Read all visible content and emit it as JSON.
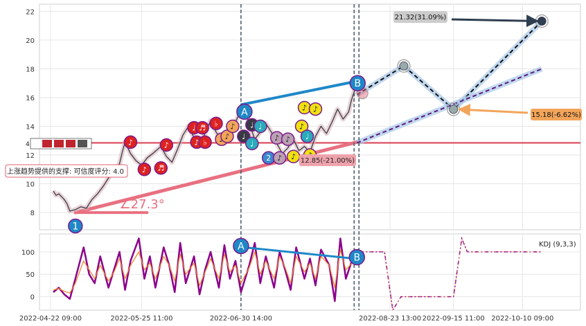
{
  "chart_data": [
    {
      "type": "line",
      "panel": "price",
      "ylim": [
        6.8,
        22.5
      ],
      "yticks": [
        "8",
        "10",
        "12",
        "14",
        "16",
        "18",
        "20",
        "22"
      ],
      "grid": true,
      "price_series": [
        [
          "2022-04-23",
          9.5
        ],
        [
          "2022-04-24",
          9.2
        ],
        [
          "2022-04-25",
          9.3
        ],
        [
          "2022-04-27",
          8.9
        ],
        [
          "2022-04-28",
          8.6
        ],
        [
          "2022-04-29",
          8.1
        ],
        [
          "2022-05-01",
          8.2
        ],
        [
          "2022-05-03",
          8.4
        ],
        [
          "2022-05-05",
          8.3
        ],
        [
          "2022-05-07",
          8.9
        ],
        [
          "2022-05-09",
          9.3
        ],
        [
          "2022-05-11",
          9.8
        ],
        [
          "2022-05-13",
          10.4
        ],
        [
          "2022-05-15",
          10.9
        ],
        [
          "2022-05-17",
          11.4
        ],
        [
          "2022-05-18",
          12.2
        ],
        [
          "2022-05-19",
          12.9
        ],
        [
          "2022-05-21",
          12.1
        ],
        [
          "2022-05-23",
          11.6
        ],
        [
          "2022-05-25",
          11.3
        ],
        [
          "2022-05-27",
          11.8
        ],
        [
          "2022-05-29",
          12.1
        ],
        [
          "2022-06-01",
          12.6
        ],
        [
          "2022-06-03",
          11.9
        ],
        [
          "2022-06-05",
          11.5
        ],
        [
          "2022-06-07",
          12.4
        ],
        [
          "2022-06-09",
          13.4
        ],
        [
          "2022-06-11",
          14.0
        ],
        [
          "2022-06-13",
          13.2
        ],
        [
          "2022-06-15",
          12.8
        ],
        [
          "2022-06-17",
          13.5
        ],
        [
          "2022-06-19",
          14.4
        ],
        [
          "2022-06-21",
          13.6
        ],
        [
          "2022-06-23",
          13.0
        ],
        [
          "2022-06-25",
          13.4
        ],
        [
          "2022-06-27",
          13.9
        ],
        [
          "2022-06-29",
          14.7
        ],
        [
          "2022-07-01",
          15.3
        ],
        [
          "2022-07-03",
          14.2
        ],
        [
          "2022-07-05",
          13.1
        ],
        [
          "2022-07-07",
          13.6
        ],
        [
          "2022-07-09",
          14.2
        ],
        [
          "2022-07-11",
          13.6
        ],
        [
          "2022-07-13",
          12.8
        ],
        [
          "2022-07-15",
          12.1
        ],
        [
          "2022-07-17",
          12.5
        ],
        [
          "2022-07-19",
          13.1
        ],
        [
          "2022-07-21",
          12.3
        ],
        [
          "2022-07-23",
          12.6
        ],
        [
          "2022-07-25",
          12.2
        ],
        [
          "2022-07-27",
          13.3
        ],
        [
          "2022-07-29",
          14.0
        ],
        [
          "2022-07-31",
          13.5
        ],
        [
          "2022-08-02",
          14.3
        ],
        [
          "2022-08-04",
          15.2
        ],
        [
          "2022-08-06",
          14.5
        ],
        [
          "2022-08-08",
          15.0
        ],
        [
          "2022-08-09",
          15.8
        ],
        [
          "2022-08-10",
          16.4
        ],
        [
          "2022-08-11",
          17.1
        ]
      ],
      "support_line": {
        "label": "上涨趋势提供的支撑: 可信度评分: 4.0",
        "value": 12.85,
        "color": "#e06070"
      },
      "trend_line": {
        "from": [
          "2022-05-01",
          8.0
        ],
        "to": [
          "2022-08-11",
          12.9
        ],
        "angle_label": "∠27.3°",
        "color": "#e87080"
      },
      "ab_line": {
        "a": [
          "2022-06-30",
          15.5
        ],
        "b": [
          "2022-08-10",
          17.1
        ],
        "a_label": "A",
        "b_label": "B"
      },
      "vlines": [
        "2022-06-30",
        "2022-08-10",
        "2022-08-11"
      ],
      "forecast_paths": [
        {
          "style": "black-dashed",
          "points": [
            [
              "2022-08-11",
              16.2
            ],
            [
              "2022-08-28",
              18.2
            ],
            [
              "2022-09-15",
              15.18
            ],
            [
              "2022-10-17",
              21.32
            ]
          ]
        },
        {
          "style": "purple-dashed",
          "points": [
            [
              "2022-08-11",
              12.85
            ],
            [
              "2022-10-17",
              18.0
            ]
          ]
        }
      ],
      "callouts": [
        {
          "text": "21.32(31.09%)",
          "point": [
            "2022-10-17",
            21.32
          ],
          "bg": "#cccccc",
          "arrow": "#2f3e50"
        },
        {
          "text": "15.18(-6.62%)",
          "point": [
            "2022-09-15",
            15.18
          ],
          "bg": "#f2a55a",
          "arrow": "#f2a55a"
        },
        {
          "text": "12.85(-21.00%)",
          "point": [
            "2022-08-11",
            12.85
          ],
          "bg": "#eea3ac",
          "arrow": "none"
        }
      ],
      "start_marker": {
        "label": "1",
        "point": [
          "2022-05-01",
          7.5
        ]
      },
      "signal_markers": [
        {
          "x": "2022-05-21",
          "y": 12.9,
          "fill": "#dd2222",
          "glyph": "♪"
        },
        {
          "x": "2022-05-26",
          "y": 11.0,
          "fill": "#dd2222",
          "glyph": "♪"
        },
        {
          "x": "2022-06-01",
          "y": 11.1,
          "fill": "#dd2222",
          "glyph": "♬"
        },
        {
          "x": "2022-06-03",
          "y": 12.7,
          "fill": "#dd2222",
          "glyph": "♪"
        },
        {
          "x": "2022-06-13",
          "y": 13.9,
          "fill": "#dd2222",
          "glyph": "♩"
        },
        {
          "x": "2022-06-14",
          "y": 12.9,
          "fill": "#dd2222",
          "glyph": "♪"
        },
        {
          "x": "2022-06-16",
          "y": 13.9,
          "fill": "#dd2222",
          "glyph": "♬"
        },
        {
          "x": "2022-06-17",
          "y": 12.9,
          "fill": "#dd2222",
          "glyph": "♭"
        },
        {
          "x": "2022-06-21",
          "y": 14.2,
          "fill": "#dd2222",
          "glyph": "♭"
        },
        {
          "x": "2022-06-23",
          "y": 13.1,
          "fill": "#f2a55a",
          "glyph": "♪"
        },
        {
          "x": "2022-06-25",
          "y": 13.3,
          "fill": "#f2a55a",
          "glyph": "♪"
        },
        {
          "x": "2022-06-27",
          "y": 14.0,
          "fill": "#f2a55a",
          "glyph": "♪"
        },
        {
          "x": "2022-07-01",
          "y": 13.3,
          "fill": "#3a3a46",
          "glyph": "♩"
        },
        {
          "x": "2022-07-04",
          "y": 14.1,
          "fill": "#3a3a46",
          "glyph": "♩"
        },
        {
          "x": "2022-07-04",
          "y": 12.8,
          "fill": "#2aaabb",
          "glyph": "♩"
        },
        {
          "x": "2022-07-07",
          "y": 14.0,
          "fill": "#2aaabb",
          "glyph": "♩"
        },
        {
          "x": "2022-07-10",
          "y": 11.8,
          "fill": "#3a8ad0",
          "glyph": "2"
        },
        {
          "x": "2022-07-13",
          "y": 13.2,
          "fill": "#bba0b4",
          "glyph": "♪"
        },
        {
          "x": "2022-07-14",
          "y": 11.8,
          "fill": "#bba0b4",
          "glyph": "♪"
        },
        {
          "x": "2022-07-17",
          "y": 13.1,
          "fill": "#bba0b4",
          "glyph": "♪"
        },
        {
          "x": "2022-07-19",
          "y": 11.9,
          "fill": "#f0e010",
          "glyph": "♪"
        },
        {
          "x": "2022-07-22",
          "y": 14.0,
          "fill": "#f0e010",
          "glyph": "♪"
        },
        {
          "x": "2022-07-24",
          "y": 13.3,
          "fill": "#2aaabb",
          "glyph": "♩"
        },
        {
          "x": "2022-07-23",
          "y": 15.3,
          "fill": "#f0e010",
          "glyph": "♪"
        },
        {
          "x": "2022-07-27",
          "y": 15.2,
          "fill": "#f0e010",
          "glyph": "♪"
        },
        {
          "x": "2022-07-25",
          "y": 12.0,
          "fill": "#f0e010",
          "glyph": "♪"
        }
      ],
      "faded_marker": {
        "x": "2022-08-13",
        "y": 16.3
      },
      "ring_points": [
        [
          "2022-08-28",
          18.2
        ],
        [
          "2022-09-15",
          15.18
        ],
        [
          "2022-10-17",
          21.32
        ]
      ],
      "legend_widget": {
        "text": "4"
      },
      "color_accent": "#1e88c8"
    },
    {
      "type": "line",
      "panel": "kdj",
      "title": "KDJ (9,3,3)",
      "ylim": [
        -30,
        140
      ],
      "yticks": [
        "0",
        "50",
        "100"
      ],
      "xticks": [
        "2022-04-22 09:00",
        "2022-05-25 11:00",
        "2022-06-30 14:00",
        "2022-08-23 13:00",
        "2022-09-15 11:00",
        "2022-10-10 09:00"
      ],
      "xtick_dates": [
        "2022-04-22",
        "2022-05-25",
        "2022-06-30",
        "2022-08-23",
        "2022-09-15",
        "2022-10-10"
      ],
      "series": [
        {
          "color": "#8b008b",
          "style": "solid",
          "values": [
            10,
            20,
            5,
            -5,
            40,
            110,
            50,
            30,
            90,
            20,
            60,
            100,
            15,
            80,
            130,
            40,
            90,
            20,
            110,
            70,
            10,
            120,
            30,
            90,
            5,
            60,
            100,
            20,
            115,
            40,
            80,
            10,
            70,
            120,
            30,
            90,
            20,
            100,
            60,
            15,
            110,
            40,
            85,
            25,
            105,
            70,
            -10,
            130,
            40,
            95
          ]
        },
        {
          "color": "#ee8833",
          "style": "solid",
          "values": [
            15,
            18,
            12,
            8,
            30,
            80,
            60,
            40,
            70,
            35,
            55,
            85,
            40,
            70,
            100,
            60,
            75,
            40,
            90,
            70,
            35,
            95,
            50,
            75,
            25,
            55,
            85,
            40,
            95,
            55,
            70,
            30,
            65,
            100,
            50,
            80,
            40,
            90,
            65,
            30,
            90,
            55,
            75,
            40,
            90,
            70,
            20,
            105,
            60,
            80
          ]
        }
      ],
      "forecast": {
        "color": "#8b008b",
        "style": "dash-dot",
        "points": [
          [
            "2022-08-12",
            100
          ],
          [
            "2022-08-21",
            100
          ],
          [
            "2022-08-24",
            -30
          ],
          [
            "2022-08-27",
            0
          ],
          [
            "2022-09-15",
            0
          ],
          [
            "2022-09-18",
            130
          ],
          [
            "2022-09-20",
            100
          ],
          [
            "2022-10-17",
            100
          ]
        ]
      },
      "ab_line": {
        "a": [
          "2022-06-30",
          110
        ],
        "b": [
          "2022-08-10",
          85
        ],
        "a_label": "A",
        "b_label": "B"
      }
    }
  ]
}
